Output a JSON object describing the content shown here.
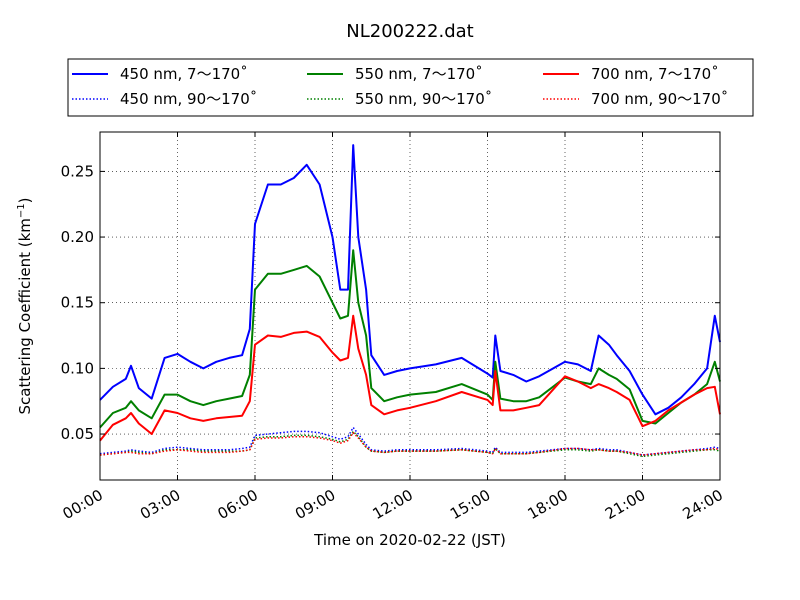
{
  "chart_data": {
    "type": "line",
    "title": "NL200222.dat",
    "xlabel": "Time on 2020-02-22 (JST)",
    "ylabel": "Scattering Coefficient (km",
    "ylabel_sup": "−1",
    "ylabel_end": ")",
    "xlim": [
      0,
      24
    ],
    "ylim": [
      0.015,
      0.28
    ],
    "x_ticks": [
      0,
      3,
      6,
      9,
      12,
      15,
      18,
      21,
      24
    ],
    "x_tick_labels": [
      "00:00",
      "03:00",
      "06:00",
      "09:00",
      "12:00",
      "15:00",
      "18:00",
      "21:00",
      "24:00"
    ],
    "y_ticks": [
      0.05,
      0.1,
      0.15,
      0.2,
      0.25
    ],
    "y_tick_labels": [
      "0.05",
      "0.10",
      "0.15",
      "0.20",
      "0.25"
    ],
    "grid": true,
    "legend_position": "top, above plot, 3 columns",
    "x": [
      0,
      0.5,
      1,
      1.2,
      1.5,
      2,
      2.5,
      3,
      3.5,
      4,
      4.5,
      5,
      5.5,
      5.8,
      6,
      6.5,
      7,
      7.5,
      8,
      8.5,
      9,
      9.3,
      9.6,
      9.8,
      10,
      10.3,
      10.5,
      11,
      11.5,
      12,
      13,
      14,
      15,
      15.2,
      15.3,
      15.5,
      16,
      16.5,
      17,
      18,
      18.5,
      19,
      19.3,
      19.7,
      20,
      20.5,
      21,
      21.5,
      22,
      22.5,
      23,
      23.5,
      23.8,
      24
    ],
    "series": [
      {
        "name": "450 nm, 7～170˚",
        "color": "#0000ff",
        "style": "solid",
        "values": [
          0.076,
          0.086,
          0.092,
          0.102,
          0.085,
          0.077,
          0.108,
          0.111,
          0.105,
          0.1,
          0.105,
          0.108,
          0.11,
          0.13,
          0.21,
          0.24,
          0.24,
          0.245,
          0.255,
          0.24,
          0.2,
          0.16,
          0.16,
          0.27,
          0.2,
          0.16,
          0.11,
          0.095,
          0.098,
          0.1,
          0.103,
          0.108,
          0.096,
          0.093,
          0.125,
          0.098,
          0.095,
          0.09,
          0.094,
          0.105,
          0.103,
          0.098,
          0.125,
          0.118,
          0.11,
          0.098,
          0.08,
          0.065,
          0.07,
          0.078,
          0.088,
          0.1,
          0.14,
          0.12
        ]
      },
      {
        "name": "550 nm, 7～170˚",
        "color": "#008000",
        "style": "solid",
        "values": [
          0.055,
          0.066,
          0.07,
          0.075,
          0.068,
          0.062,
          0.08,
          0.08,
          0.075,
          0.072,
          0.075,
          0.077,
          0.079,
          0.095,
          0.16,
          0.172,
          0.172,
          0.175,
          0.178,
          0.17,
          0.15,
          0.138,
          0.14,
          0.19,
          0.15,
          0.125,
          0.085,
          0.075,
          0.078,
          0.08,
          0.082,
          0.088,
          0.08,
          0.076,
          0.105,
          0.077,
          0.075,
          0.075,
          0.078,
          0.093,
          0.09,
          0.088,
          0.1,
          0.095,
          0.092,
          0.084,
          0.06,
          0.058,
          0.066,
          0.074,
          0.08,
          0.088,
          0.105,
          0.09
        ]
      },
      {
        "name": "700 nm, 7～170˚",
        "color": "#ff0000",
        "style": "solid",
        "values": [
          0.045,
          0.057,
          0.062,
          0.066,
          0.058,
          0.05,
          0.068,
          0.066,
          0.062,
          0.06,
          0.062,
          0.063,
          0.064,
          0.075,
          0.118,
          0.125,
          0.124,
          0.127,
          0.128,
          0.124,
          0.112,
          0.106,
          0.108,
          0.14,
          0.115,
          0.095,
          0.072,
          0.065,
          0.068,
          0.07,
          0.075,
          0.082,
          0.076,
          0.072,
          0.098,
          0.068,
          0.068,
          0.07,
          0.072,
          0.094,
          0.09,
          0.085,
          0.088,
          0.085,
          0.082,
          0.076,
          0.056,
          0.06,
          0.068,
          0.074,
          0.08,
          0.085,
          0.086,
          0.065
        ]
      },
      {
        "name": "450 nm, 90～170˚",
        "color": "#0000ff",
        "style": "dotted",
        "values": [
          0.035,
          0.036,
          0.037,
          0.038,
          0.037,
          0.036,
          0.039,
          0.04,
          0.039,
          0.038,
          0.038,
          0.038,
          0.039,
          0.04,
          0.049,
          0.05,
          0.051,
          0.052,
          0.052,
          0.051,
          0.048,
          0.046,
          0.048,
          0.055,
          0.05,
          0.042,
          0.038,
          0.037,
          0.038,
          0.038,
          0.038,
          0.039,
          0.037,
          0.036,
          0.04,
          0.036,
          0.036,
          0.036,
          0.037,
          0.039,
          0.039,
          0.038,
          0.039,
          0.038,
          0.038,
          0.036,
          0.034,
          0.035,
          0.036,
          0.037,
          0.038,
          0.039,
          0.04,
          0.039
        ]
      },
      {
        "name": "550 nm, 90～170˚",
        "color": "#008000",
        "style": "dotted",
        "values": [
          0.034,
          0.035,
          0.036,
          0.037,
          0.036,
          0.035,
          0.038,
          0.038,
          0.038,
          0.037,
          0.037,
          0.037,
          0.037,
          0.038,
          0.047,
          0.048,
          0.048,
          0.049,
          0.049,
          0.048,
          0.046,
          0.044,
          0.046,
          0.052,
          0.048,
          0.04,
          0.037,
          0.036,
          0.037,
          0.037,
          0.037,
          0.038,
          0.036,
          0.035,
          0.039,
          0.035,
          0.035,
          0.035,
          0.036,
          0.038,
          0.038,
          0.037,
          0.038,
          0.037,
          0.037,
          0.035,
          0.033,
          0.034,
          0.035,
          0.036,
          0.037,
          0.038,
          0.038,
          0.037
        ]
      },
      {
        "name": "700 nm, 90～170˚",
        "color": "#ff0000",
        "style": "dotted",
        "values": [
          0.034,
          0.035,
          0.036,
          0.036,
          0.035,
          0.035,
          0.037,
          0.038,
          0.037,
          0.036,
          0.036,
          0.036,
          0.037,
          0.038,
          0.046,
          0.047,
          0.047,
          0.048,
          0.048,
          0.047,
          0.045,
          0.043,
          0.045,
          0.051,
          0.047,
          0.04,
          0.037,
          0.036,
          0.037,
          0.037,
          0.037,
          0.038,
          0.036,
          0.035,
          0.039,
          0.035,
          0.035,
          0.035,
          0.036,
          0.039,
          0.039,
          0.038,
          0.038,
          0.037,
          0.037,
          0.036,
          0.034,
          0.035,
          0.036,
          0.037,
          0.038,
          0.038,
          0.039,
          0.038
        ]
      }
    ],
    "legend_order": [
      0,
      1,
      2,
      3,
      4,
      5
    ]
  }
}
